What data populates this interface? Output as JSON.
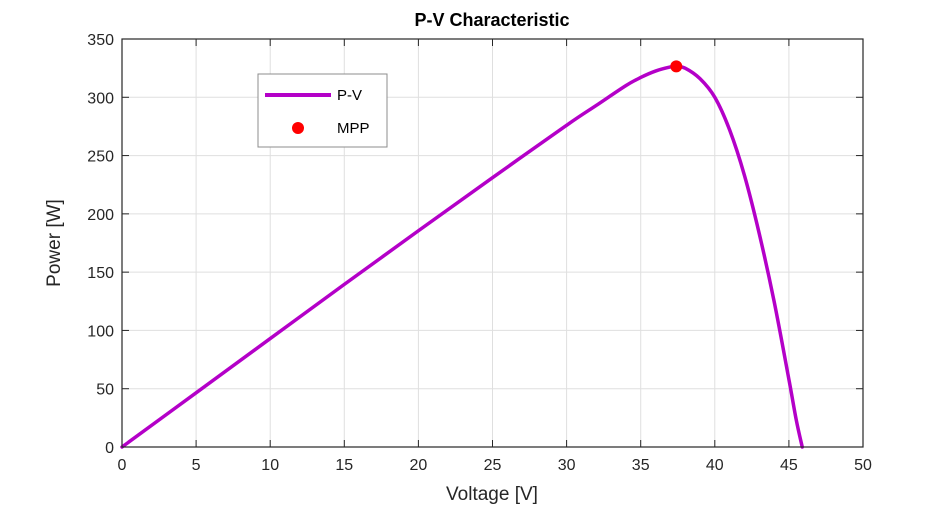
{
  "chart_data": {
    "type": "line",
    "title": "P-V Characteristic",
    "xlabel": "Voltage [V]",
    "ylabel": "Power [W]",
    "xlim": [
      0,
      50
    ],
    "ylim": [
      0,
      350
    ],
    "xticks": [
      0,
      5,
      10,
      15,
      20,
      25,
      30,
      35,
      40,
      45,
      50
    ],
    "yticks": [
      0,
      50,
      100,
      150,
      200,
      250,
      300,
      350
    ],
    "grid": true,
    "legend_position": "top-left",
    "series": [
      {
        "name": "P-V",
        "color": "#b400c8",
        "x": [
          0,
          5,
          10,
          15,
          20,
          25,
          30,
          32,
          34,
          35,
          36,
          37,
          37.4,
          38,
          39,
          40,
          41,
          42,
          43,
          44,
          45,
          45.5,
          45.9
        ],
        "y": [
          0,
          46.5,
          93,
          139.5,
          185.5,
          231,
          276,
          293,
          310,
          317,
          322.5,
          326,
          326.5,
          325,
          316,
          300,
          272,
          233,
          183,
          125,
          58,
          23,
          0
        ]
      }
    ],
    "points": [
      {
        "name": "MPP",
        "color": "#ff0000",
        "x": 37.4,
        "y": 326.5
      }
    ]
  }
}
